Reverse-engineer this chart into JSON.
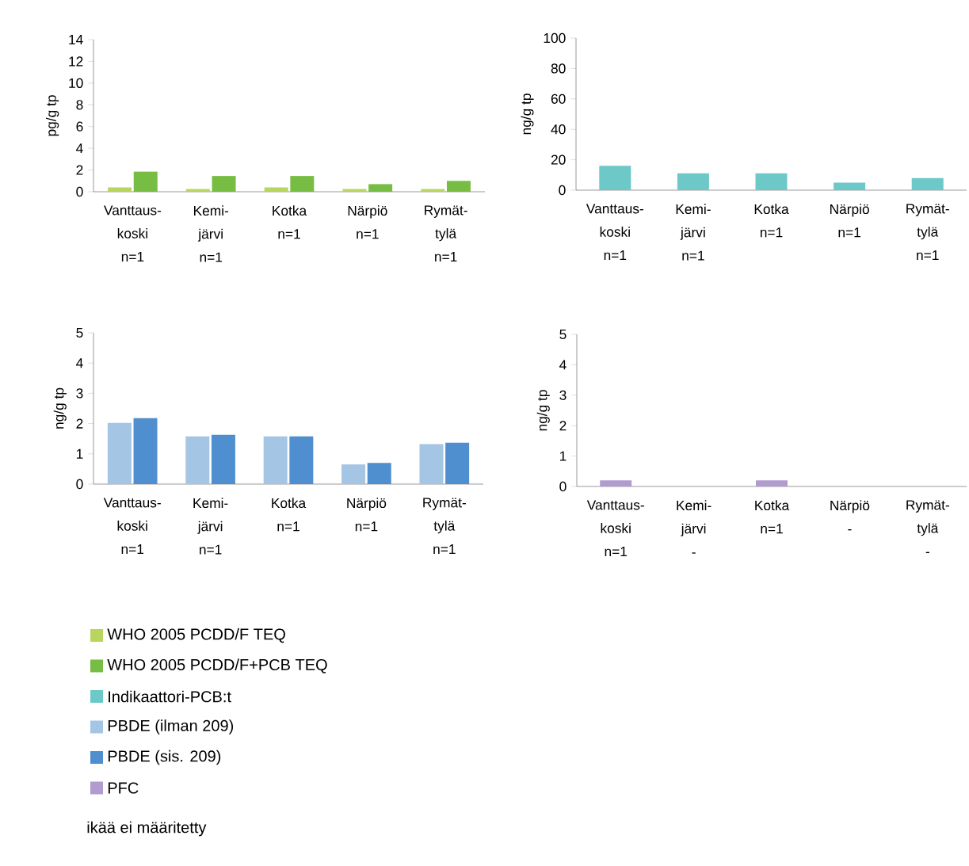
{
  "chart_data": [
    {
      "type": "bar",
      "ylabel": "pg/g tp",
      "categories": [
        "Vanttaus-koski n=1",
        "Kemi-järvi n=1",
        "Kotka n=1",
        "Närpiö n=1",
        "Rymät-tylä n=1"
      ],
      "ylim": [
        0,
        14
      ],
      "yticks": [
        0,
        2,
        4,
        6,
        8,
        10,
        12,
        14
      ],
      "legend": "bottom",
      "series": [
        {
          "name": "WHO 2005  PCDD/F TEQ",
          "color": "#b8d65e",
          "values": [
            0.4,
            0.25,
            0.4,
            0.25,
            0.25
          ]
        },
        {
          "name": "WHO 2005  PCDD/F+PCB TEQ",
          "color": "#78bd43",
          "values": [
            1.85,
            1.45,
            1.45,
            0.7,
            1.0
          ]
        }
      ]
    },
    {
      "type": "bar",
      "ylabel": "ng/g tp",
      "categories": [
        "Vanttaus-koski n=1",
        "Kemi-järvi n=1",
        "Kotka n=1",
        "Närpiö n=1",
        "Rymät-tylä n=1"
      ],
      "ylim": [
        0,
        100
      ],
      "yticks": [
        0,
        20,
        40,
        60,
        80,
        100
      ],
      "legend": "bottom",
      "series": [
        {
          "name": "Indikaattori-PCB:t",
          "color": "#6cc9c7",
          "values": [
            16,
            11,
            11,
            5,
            8
          ]
        }
      ]
    },
    {
      "type": "bar",
      "ylabel": "ng/g tp",
      "categories": [
        "Vanttaus-koski n=1",
        "Kemi-järvi n=1",
        "Kotka n=1",
        "Närpiö n=1",
        "Rymät-tylä n=1"
      ],
      "ylim": [
        0,
        5
      ],
      "yticks": [
        0,
        1,
        2,
        3,
        4,
        5
      ],
      "legend": "bottom",
      "series": [
        {
          "name": "PBDE (ilman 209)",
          "color": "#a5c5e4",
          "values": [
            2.02,
            1.58,
            1.58,
            0.65,
            1.32
          ]
        },
        {
          "name": "PBDE (sis. 209)",
          "color": "#508fcf",
          "values": [
            2.18,
            1.63,
            1.58,
            0.7,
            1.37
          ]
        }
      ]
    },
    {
      "type": "bar",
      "ylabel": "ng/g tp",
      "categories": [
        "Vanttaus-koski n=1",
        "Kemi-järvi -",
        "Kotka n=1",
        "Närpiö -",
        "Rymät-tylä -"
      ],
      "ylim": [
        0,
        5
      ],
      "yticks": [
        0,
        1,
        2,
        3,
        4,
        5
      ],
      "legend": "bottom",
      "annotations": [
        "ikää ei määritetty"
      ],
      "series": [
        {
          "name": "PFC",
          "color": "#b29ccf",
          "values": [
            0.2,
            null,
            0.2,
            null,
            null
          ]
        }
      ]
    }
  ]
}
